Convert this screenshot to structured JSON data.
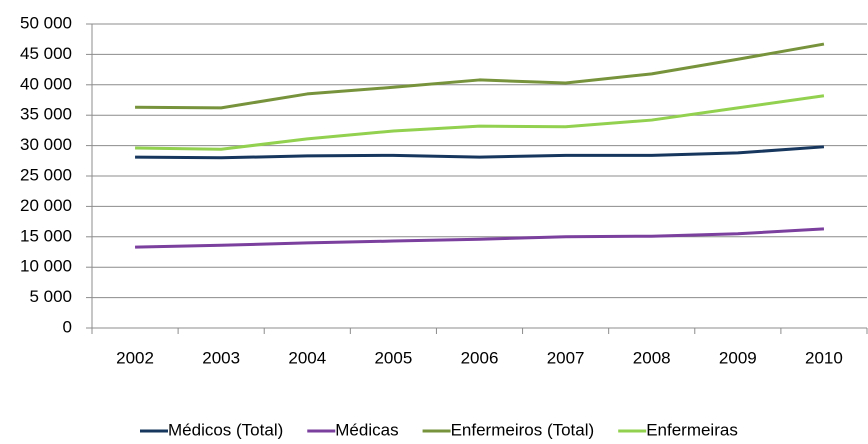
{
  "chart_data": {
    "type": "line",
    "categories": [
      "2002",
      "2003",
      "2004",
      "2005",
      "2006",
      "2007",
      "2008",
      "2009",
      "2010"
    ],
    "series": [
      {
        "name": "Médicos (Total)",
        "color": "#17375e",
        "values": [
          28100,
          28000,
          28300,
          28400,
          28100,
          28400,
          28400,
          28800,
          29800
        ]
      },
      {
        "name": "Médicas",
        "color": "#7b3f9d",
        "values": [
          13300,
          13600,
          14000,
          14300,
          14600,
          15000,
          15100,
          15500,
          16300
        ]
      },
      {
        "name": "Enfermeiros (Total)",
        "color": "#77933c",
        "values": [
          36300,
          36200,
          38500,
          39600,
          40800,
          40300,
          41800,
          44200,
          46700
        ]
      },
      {
        "name": "Enfermeiras",
        "color": "#92d050",
        "values": [
          29600,
          29400,
          31100,
          32400,
          33200,
          33100,
          34200,
          36200,
          38200
        ]
      }
    ],
    "ylim": [
      0,
      50000
    ],
    "yticks": [
      0,
      {
        "value": 5000,
        "label": "5 000"
      },
      {
        "value": 10000,
        "label": "10 000"
      },
      {
        "value": 15000,
        "label": "15 000"
      },
      {
        "value": 20000,
        "label": "20 000"
      },
      {
        "value": 25000,
        "label": "25 000"
      },
      {
        "value": 30000,
        "label": "30 000"
      },
      {
        "value": 35000,
        "label": "35 000"
      },
      {
        "value": 40000,
        "label": "40 000"
      },
      {
        "value": 45000,
        "label": "45 000"
      },
      {
        "value": 50000,
        "label": "50 000"
      }
    ],
    "grid": true,
    "legend": "bottom"
  }
}
